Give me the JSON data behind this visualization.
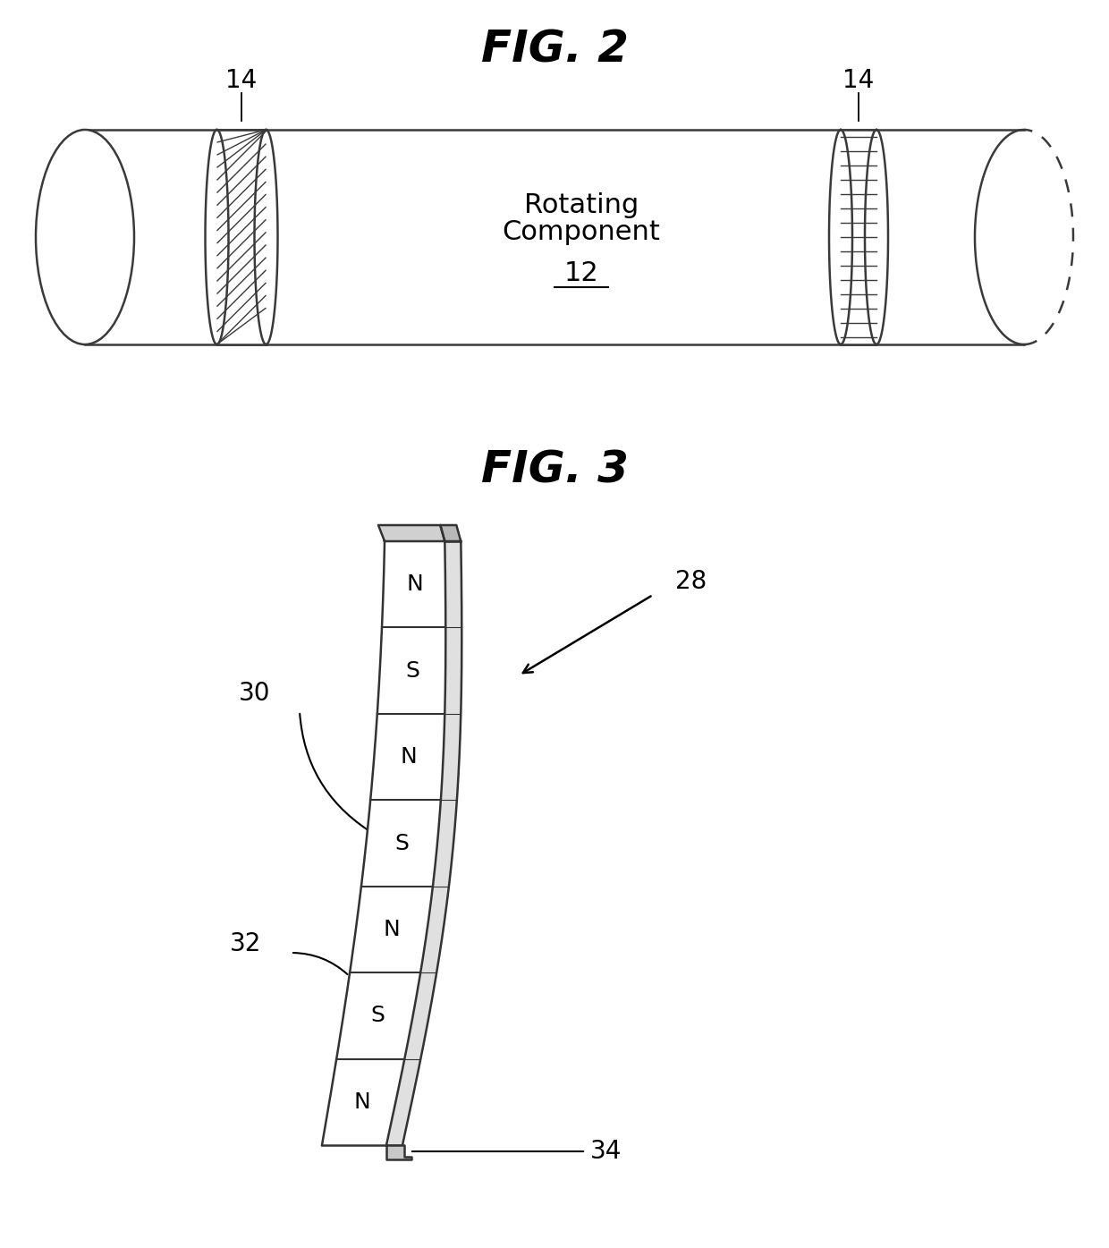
{
  "fig2_title": "FIG. 2",
  "fig3_title": "FIG. 3",
  "bg_color": "#ffffff",
  "line_color": "#000000",
  "label_color": "#000000",
  "fig2_label_12": "12",
  "fig2_label_14": "14",
  "fig2_text_rotating": "Rotating",
  "fig2_text_component": "Component",
  "fig3_label_28": "28",
  "fig3_label_30": "30",
  "fig3_label_32": "32",
  "fig3_label_34": "34",
  "magnet_poles": [
    "N",
    "S",
    "N",
    "S",
    "N",
    "S",
    "N"
  ]
}
